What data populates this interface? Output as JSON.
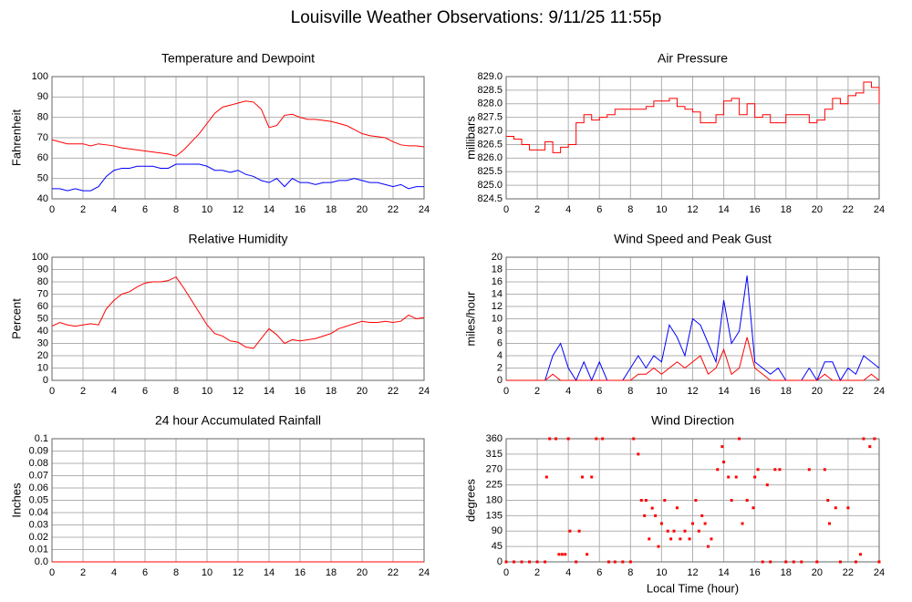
{
  "title": "Louisville Weather Observations: 9/11/25 11:55p",
  "chart_data": [
    {
      "type": "line",
      "title": "Temperature and Dewpoint",
      "ylabel": "Fahrenheit",
      "x": [
        0,
        0.5,
        1,
        1.5,
        2,
        2.5,
        3,
        3.5,
        4,
        4.5,
        5,
        5.5,
        6,
        6.5,
        7,
        7.5,
        8,
        8.5,
        9,
        9.5,
        10,
        10.5,
        11,
        11.5,
        12,
        12.5,
        13,
        13.5,
        14,
        14.5,
        15,
        15.5,
        16,
        16.5,
        17,
        17.5,
        18,
        18.5,
        19,
        19.5,
        20,
        20.5,
        21,
        21.5,
        22,
        22.5,
        23,
        23.5,
        24
      ],
      "series": [
        {
          "color": "#ff0000",
          "values": [
            69,
            68,
            67,
            67,
            67,
            66,
            67,
            66.5,
            66,
            65,
            64.5,
            64,
            63.5,
            63,
            62.5,
            62,
            61,
            64,
            68,
            72,
            77,
            82,
            85,
            86,
            87,
            88,
            87.5,
            84,
            75,
            76,
            81,
            81.5,
            80,
            79,
            79,
            78.5,
            78,
            77,
            76,
            74,
            72,
            71,
            70.5,
            70,
            68,
            66.5,
            66,
            66,
            65.5
          ]
        },
        {
          "color": "#0000ff",
          "values": [
            45,
            45,
            44,
            45,
            44,
            44,
            46,
            51,
            54,
            55,
            55,
            56,
            56,
            56,
            55,
            55,
            57,
            57,
            57,
            57,
            56,
            54,
            54,
            53,
            54,
            52,
            51,
            49,
            48,
            50,
            46,
            50,
            48,
            48,
            47,
            48,
            48,
            49,
            49,
            50,
            49,
            48,
            48,
            47,
            46,
            47,
            45,
            46,
            46
          ]
        }
      ],
      "xlim": [
        0,
        24
      ],
      "xticks": [
        0,
        2,
        4,
        6,
        8,
        10,
        12,
        14,
        16,
        18,
        20,
        22,
        24
      ],
      "ylim": [
        40,
        100
      ],
      "yticks": [
        40,
        50,
        60,
        70,
        80,
        90,
        100
      ],
      "grid": true
    },
    {
      "type": "step",
      "title": "Air Pressure",
      "ylabel": "millibars",
      "x": [
        0,
        0.5,
        1,
        1.5,
        2,
        2.5,
        3,
        3.5,
        4,
        4.5,
        5,
        5.5,
        6,
        6.5,
        7,
        7.5,
        8,
        8.5,
        9,
        9.5,
        10,
        10.5,
        11,
        11.5,
        12,
        12.5,
        13,
        13.5,
        14,
        14.5,
        15,
        15.5,
        16,
        16.5,
        17,
        17.5,
        18,
        18.5,
        19,
        19.5,
        20,
        20.5,
        21,
        21.5,
        22,
        22.5,
        23,
        23.5,
        24
      ],
      "series": [
        {
          "color": "#ff0000",
          "values": [
            826.8,
            826.7,
            826.5,
            826.3,
            826.3,
            826.6,
            826.2,
            826.4,
            826.5,
            827.3,
            827.6,
            827.4,
            827.5,
            827.6,
            827.8,
            827.8,
            827.8,
            827.8,
            827.9,
            828.1,
            828.1,
            828.2,
            827.9,
            827.8,
            827.7,
            827.3,
            827.3,
            827.6,
            828.1,
            828.2,
            827.6,
            828.0,
            827.5,
            827.6,
            827.3,
            827.3,
            827.6,
            827.6,
            827.6,
            827.3,
            827.4,
            827.8,
            828.2,
            828.0,
            828.3,
            828.4,
            828.8,
            828.6,
            828.0
          ]
        }
      ],
      "xlim": [
        0,
        24
      ],
      "xticks": [
        0,
        2,
        4,
        6,
        8,
        10,
        12,
        14,
        16,
        18,
        20,
        22,
        24
      ],
      "ylim": [
        824.5,
        829
      ],
      "yticks": [
        824.5,
        {
          "value": 825,
          "label": "825.0"
        },
        825.5,
        {
          "value": 826,
          "label": "826.0"
        },
        826.5,
        {
          "value": 827,
          "label": "827.0"
        },
        827.5,
        {
          "value": 828,
          "label": "828.0"
        },
        828.5,
        {
          "value": 829,
          "label": "829.0"
        }
      ],
      "grid": true
    },
    {
      "type": "line",
      "title": "Relative Humidity",
      "ylabel": "Percent",
      "x": [
        0,
        0.5,
        1,
        1.5,
        2,
        2.5,
        3,
        3.5,
        4,
        4.5,
        5,
        5.5,
        6,
        6.5,
        7,
        7.5,
        8,
        8.5,
        9,
        9.5,
        10,
        10.5,
        11,
        11.5,
        12,
        12.5,
        13,
        13.5,
        14,
        14.5,
        15,
        15.5,
        16,
        16.5,
        17,
        17.5,
        18,
        18.5,
        19,
        19.5,
        20,
        20.5,
        21,
        21.5,
        22,
        22.5,
        23,
        23.5,
        24
      ],
      "series": [
        {
          "color": "#ff0000",
          "values": [
            44,
            47,
            45,
            44,
            45,
            46,
            45,
            58,
            65,
            70,
            72,
            76,
            79,
            80,
            80,
            81,
            84,
            75,
            65,
            55,
            45,
            38,
            36,
            32,
            31,
            27,
            26,
            34,
            42,
            37,
            30,
            33,
            32,
            33,
            34,
            36,
            38,
            42,
            44,
            46,
            48,
            47,
            47,
            48,
            47,
            48,
            53,
            50,
            51
          ]
        }
      ],
      "xlim": [
        0,
        24
      ],
      "xticks": [
        0,
        2,
        4,
        6,
        8,
        10,
        12,
        14,
        16,
        18,
        20,
        22,
        24
      ],
      "ylim": [
        0,
        100
      ],
      "yticks": [
        0,
        10,
        20,
        30,
        40,
        50,
        60,
        70,
        80,
        90,
        100
      ],
      "grid": true
    },
    {
      "type": "line",
      "title": "Wind Speed and Peak Gust",
      "ylabel": "miles/hour",
      "x": [
        0,
        0.5,
        1,
        1.5,
        2,
        2.5,
        3,
        3.5,
        4,
        4.5,
        5,
        5.5,
        6,
        6.5,
        7,
        7.5,
        8,
        8.5,
        9,
        9.5,
        10,
        10.5,
        11,
        11.5,
        12,
        12.5,
        13,
        13.5,
        14,
        14.5,
        15,
        15.5,
        16,
        16.5,
        17,
        17.5,
        18,
        18.5,
        19,
        19.5,
        20,
        20.5,
        21,
        21.5,
        22,
        22.5,
        23,
        23.5,
        24
      ],
      "series": [
        {
          "color": "#0000ff",
          "values": [
            0,
            0,
            0,
            0,
            0,
            0,
            4,
            6,
            2,
            0,
            3,
            0,
            3,
            0,
            0,
            0,
            2,
            4,
            2,
            4,
            3,
            9,
            7,
            4,
            10,
            9,
            6,
            3,
            13,
            6,
            8,
            17,
            3,
            2,
            1,
            2,
            0,
            0,
            0,
            2,
            0,
            3,
            3,
            0,
            2,
            1,
            4,
            3,
            2
          ]
        },
        {
          "color": "#ff0000",
          "values": [
            0,
            0,
            0,
            0,
            0,
            0,
            1,
            0,
            0,
            0,
            0,
            0,
            0,
            0,
            0,
            0,
            0,
            1,
            1,
            2,
            1,
            2,
            3,
            2,
            3,
            4,
            1,
            2,
            5,
            1,
            2,
            7,
            2,
            1,
            0,
            0,
            0,
            0,
            0,
            0,
            0,
            1,
            0,
            0,
            0,
            0,
            0,
            1,
            0
          ]
        }
      ],
      "xlim": [
        0,
        24
      ],
      "xticks": [
        0,
        2,
        4,
        6,
        8,
        10,
        12,
        14,
        16,
        18,
        20,
        22,
        24
      ],
      "ylim": [
        0,
        20
      ],
      "yticks": [
        0,
        2,
        4,
        6,
        8,
        10,
        12,
        14,
        16,
        18,
        20
      ],
      "grid": true
    },
    {
      "type": "line",
      "title": "24 hour Accumulated Rainfall",
      "ylabel": "Inches",
      "x": [
        0,
        24
      ],
      "series": [
        {
          "color": "#ff0000",
          "values": [
            0,
            0
          ]
        }
      ],
      "xlim": [
        0,
        24
      ],
      "xticks": [
        0,
        2,
        4,
        6,
        8,
        10,
        12,
        14,
        16,
        18,
        20,
        22,
        24
      ],
      "ylim": [
        0,
        0.1
      ],
      "yticks": [
        {
          "value": 0,
          "label": "0.0"
        },
        0.01,
        0.02,
        0.03,
        0.04,
        0.05,
        0.06,
        0.07,
        0.08,
        0.09,
        0.1
      ],
      "grid": true
    },
    {
      "type": "scatter",
      "title": "Wind Direction",
      "ylabel": "degrees",
      "xlabel": "Local Time (hour)",
      "x": [
        0,
        0.5,
        1,
        1.5,
        2,
        2.5,
        2.6,
        2.8,
        3.2,
        3.4,
        3.6,
        3.8,
        4,
        4.1,
        4.5,
        4.7,
        4.9,
        5.2,
        5.5,
        5.8,
        6.2,
        6.6,
        7,
        7.5,
        8,
        8.2,
        8.5,
        8.7,
        8.9,
        9,
        9.2,
        9.4,
        9.6,
        9.8,
        10,
        10.2,
        10.4,
        10.6,
        10.8,
        11,
        11.2,
        11.5,
        11.8,
        12,
        12.2,
        12.4,
        12.6,
        12.8,
        13,
        13.2,
        13.6,
        13.9,
        14,
        14.3,
        14.5,
        14.8,
        15,
        15.2,
        15.5,
        15.9,
        16,
        16.2,
        16.5,
        16.8,
        17,
        17.3,
        17.6,
        18,
        18.5,
        19,
        19.5,
        20,
        20.5,
        20.7,
        20.8,
        21.2,
        21.5,
        22,
        22.5,
        22.8,
        23,
        23.4,
        23.7,
        24
      ],
      "color": "#ff0000",
      "values": [
        0,
        0,
        0,
        0,
        0,
        0,
        248,
        360,
        360,
        22,
        22,
        22,
        360,
        90,
        0,
        90,
        248,
        22,
        248,
        360,
        360,
        0,
        0,
        0,
        0,
        360,
        315,
        180,
        135,
        180,
        67,
        157,
        135,
        45,
        112,
        180,
        90,
        67,
        90,
        158,
        67,
        90,
        67,
        112,
        180,
        90,
        135,
        112,
        45,
        67,
        270,
        337,
        292,
        248,
        180,
        248,
        360,
        112,
        180,
        158,
        248,
        270,
        0,
        225,
        0,
        270,
        270,
        0,
        0,
        0,
        270,
        0,
        270,
        180,
        112,
        158,
        0,
        158,
        0,
        22,
        360,
        337,
        360,
        0
      ],
      "xlim": [
        0,
        24
      ],
      "xticks": [
        0,
        2,
        4,
        6,
        8,
        10,
        12,
        14,
        16,
        18,
        20,
        22,
        24
      ],
      "ylim": [
        0,
        360
      ],
      "yticks": [
        0,
        45,
        90,
        135,
        180,
        225,
        270,
        315,
        360
      ],
      "grid": true
    }
  ]
}
